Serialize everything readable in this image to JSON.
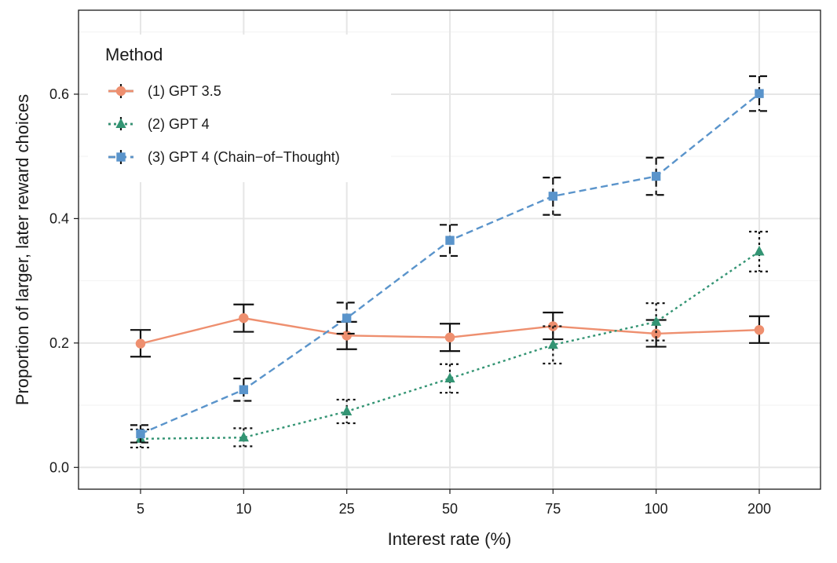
{
  "chart_data": {
    "type": "line",
    "xlabel": "Interest rate (%)",
    "ylabel": "Proportion of larger, later reward choices",
    "categories": [
      "5",
      "10",
      "25",
      "50",
      "75",
      "100",
      "200"
    ],
    "ylim": [
      -0.035,
      0.735
    ],
    "yticks": [
      "0.0",
      "0.2",
      "0.4",
      "0.6"
    ],
    "grid": true,
    "legend": {
      "title": "Method",
      "position": "top-left"
    },
    "series": [
      {
        "name": "(1) GPT 3.5",
        "color": "#EE8F6F",
        "line_style": "solid",
        "marker": "circle",
        "errorbar_style": "solid",
        "values": [
          0.199,
          0.24,
          0.212,
          0.209,
          0.227,
          0.215,
          0.221
        ],
        "err_low": [
          0.178,
          0.218,
          0.19,
          0.187,
          0.206,
          0.194,
          0.2
        ],
        "err_high": [
          0.221,
          0.262,
          0.234,
          0.231,
          0.249,
          0.237,
          0.243
        ]
      },
      {
        "name": "(2) GPT 4",
        "color": "#339473",
        "line_style": "dotted",
        "marker": "triangle",
        "errorbar_style": "dotted",
        "values": [
          0.046,
          0.048,
          0.09,
          0.143,
          0.197,
          0.234,
          0.347
        ],
        "err_low": [
          0.032,
          0.034,
          0.071,
          0.12,
          0.167,
          0.204,
          0.315
        ],
        "err_high": [
          0.061,
          0.063,
          0.109,
          0.166,
          0.227,
          0.264,
          0.379
        ]
      },
      {
        "name": "(3) GPT 4 (Chain−of−Thought)",
        "color": "#5A94CB",
        "line_style": "dashed",
        "marker": "square",
        "errorbar_style": "dashed",
        "values": [
          0.054,
          0.125,
          0.24,
          0.365,
          0.436,
          0.468,
          0.601
        ],
        "err_low": [
          0.04,
          0.107,
          0.215,
          0.34,
          0.406,
          0.438,
          0.573
        ],
        "err_high": [
          0.068,
          0.143,
          0.265,
          0.39,
          0.466,
          0.498,
          0.629
        ]
      }
    ]
  }
}
